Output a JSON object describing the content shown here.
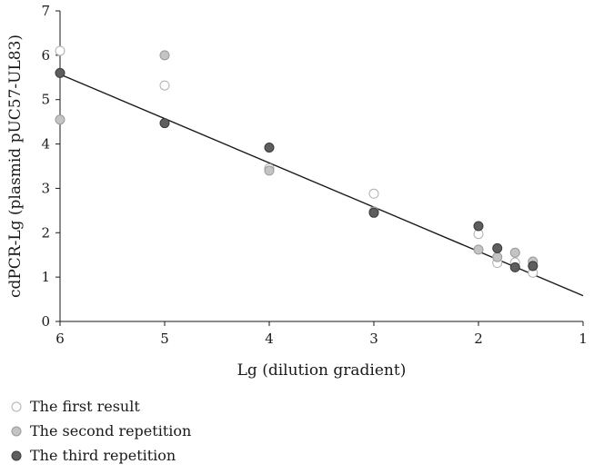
{
  "chart_data": {
    "type": "scatter",
    "xlabel": "Lg (dilution gradient)",
    "ylabel": "cdPCR-Lg (plasmid pUC57-UL83)",
    "xlim": [
      6,
      1
    ],
    "ylim": [
      0,
      7
    ],
    "x_ticks": [
      "6",
      "5",
      "4",
      "3",
      "2",
      "1"
    ],
    "y_ticks": [
      "0",
      "1",
      "2",
      "3",
      "4",
      "5",
      "6",
      "7"
    ],
    "grid": false,
    "legend_position": "bottom-left",
    "series": [
      {
        "name": "The first result",
        "fill": "#ffffff",
        "stroke": "#b0b0b0",
        "points": [
          [
            6,
            6.1
          ],
          [
            5,
            5.32
          ],
          [
            4,
            3.45
          ],
          [
            3,
            2.88
          ],
          [
            2,
            1.97
          ],
          [
            1.82,
            1.32
          ],
          [
            1.65,
            1.33
          ],
          [
            1.48,
            1.1
          ]
        ]
      },
      {
        "name": "The second repetition",
        "fill": "#c4c4c4",
        "stroke": "#9a9a9a",
        "points": [
          [
            6,
            4.55
          ],
          [
            5,
            6.0
          ],
          [
            4,
            3.4
          ],
          [
            3,
            2.48
          ],
          [
            2,
            1.62
          ],
          [
            1.82,
            1.45
          ],
          [
            1.65,
            1.55
          ],
          [
            1.48,
            1.35
          ]
        ]
      },
      {
        "name": "The third repetition",
        "fill": "#5e5e5e",
        "stroke": "#3a3a3a",
        "points": [
          [
            6,
            5.6
          ],
          [
            5,
            4.47
          ],
          [
            4,
            3.92
          ],
          [
            3,
            2.45
          ],
          [
            2,
            2.15
          ],
          [
            1.82,
            1.65
          ],
          [
            1.65,
            1.22
          ],
          [
            1.48,
            1.25
          ]
        ]
      }
    ],
    "trendline": {
      "x": [
        6,
        1
      ],
      "y": [
        5.57,
        0.58
      ],
      "color": "#1a1a1a"
    }
  }
}
